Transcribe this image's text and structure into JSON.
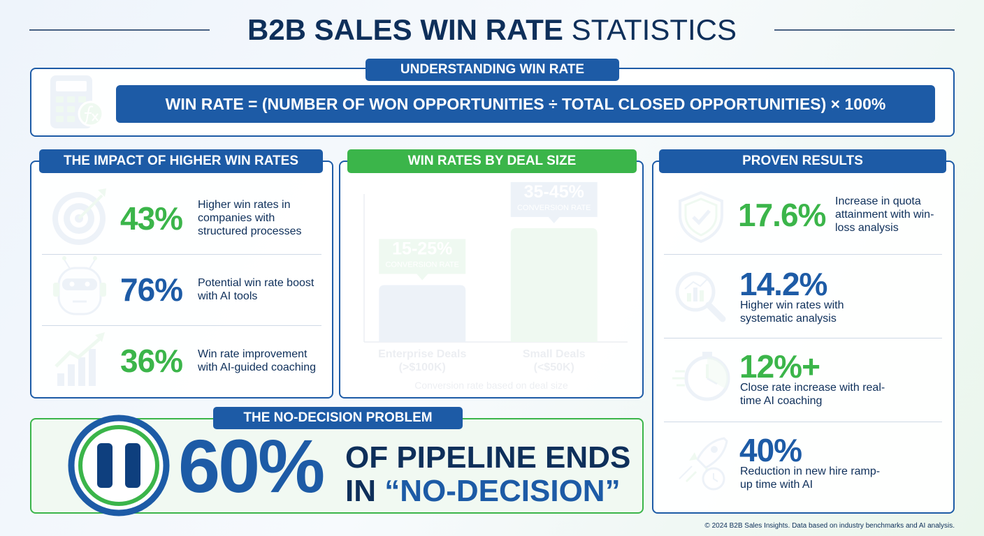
{
  "header": {
    "title_strong": "B2B SALES WIN RATE",
    "title_light": "STATISTICS"
  },
  "formula": {
    "heading": "UNDERSTANDING WIN RATE",
    "text": "WIN RATE = (NUMBER OF WON OPPORTUNITIES ÷ TOTAL CLOSED OPPORTUNITIES) × 100%"
  },
  "impact": {
    "heading": "THE IMPACT OF HIGHER WIN RATES",
    "items": [
      {
        "value": "43%",
        "text": "Higher win rates in companies with structured processes",
        "color": "#3bb54a"
      },
      {
        "value": "76%",
        "text": "Potential win rate boost with AI tools",
        "color": "#1d5ba6"
      },
      {
        "value": "36%",
        "text": "Win rate improvement with AI-guided coaching",
        "color": "#3bb54a"
      }
    ]
  },
  "chart_data": {
    "type": "bar",
    "title": "WIN RATES BY DEAL SIZE",
    "categories": [
      "Enterprise Deals",
      "Small Deals"
    ],
    "category_notes": [
      "(>$100K)",
      "(<$50K)"
    ],
    "values": [
      20,
      40
    ],
    "value_labels": [
      "15-25%",
      "35-45%"
    ],
    "value_sublabel": "CONVERSION RATE",
    "xlabel": "Conversion rate based on deal size",
    "colors": [
      "#1d5ba6",
      "#3bb54a"
    ],
    "label_colors": [
      "#3bb54a",
      "#1d5ba6"
    ],
    "ylim": [
      0,
      52
    ]
  },
  "results": {
    "heading": "PROVEN RESULTS",
    "items": [
      {
        "value": "17.6%",
        "text": "Increase in quota attainment with win-loss analysis",
        "color": "#3bb54a"
      },
      {
        "value": "14.2%",
        "text": "Higher win rates with systematic analysis",
        "color": "#1d5ba6"
      },
      {
        "value": "12%+",
        "text": "Close rate increase with real-time AI coaching",
        "color": "#3bb54a"
      },
      {
        "value": "40%",
        "text": "Reduction in new hire ramp-up time with AI",
        "color": "#1d5ba6"
      }
    ]
  },
  "no_decision": {
    "heading": "THE NO-DECISION PROBLEM",
    "value": "60%",
    "line1": "OF PIPELINE ENDS",
    "line2_prefix": "IN",
    "line2_quote": "“NO-DECISION”"
  },
  "footer": "© 2024 B2B Sales Insights. Data based on industry benchmarks and AI analysis."
}
